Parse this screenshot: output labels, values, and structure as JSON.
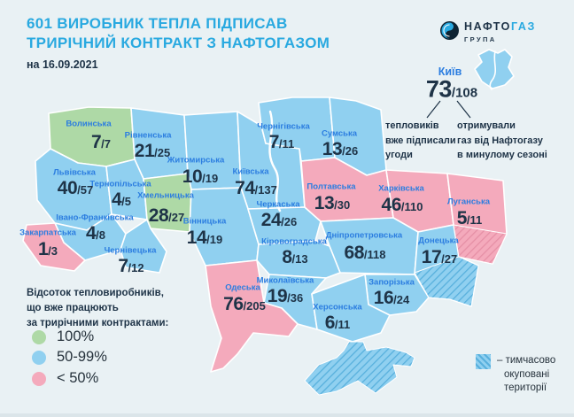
{
  "header": {
    "title_line1": "601 ВИРОБНИК ТЕПЛА ПІДПИСАВ",
    "title_line2": "ТРИРІЧНИЙ КОНТРАКТ З НАФТОГАЗОМ",
    "date": "на 16.09.2021"
  },
  "logo": {
    "brand_dark": "НАФТО",
    "brand_blue": "ГАЗ",
    "subtitle": "ГРУПА"
  },
  "callout": {
    "left_note": [
      "тепловиків",
      "вже підписали",
      "угоди"
    ],
    "right_note": [
      "отримували",
      "газ від Нафтогазу",
      "в минулому сезоні"
    ]
  },
  "regions": [
    {
      "id": "volyn",
      "name": "Волинська",
      "signed": 7,
      "total": 7,
      "category": "green"
    },
    {
      "id": "rivne",
      "name": "Рівненська",
      "signed": 21,
      "total": 25,
      "category": "blue"
    },
    {
      "id": "zhytomyr",
      "name": "Житомирська",
      "signed": 10,
      "total": 19,
      "category": "blue"
    },
    {
      "id": "kyiv-oblast",
      "name": "Київська",
      "signed": 74,
      "total": 137,
      "category": "blue"
    },
    {
      "id": "chernihiv",
      "name": "Чернігівська",
      "signed": 7,
      "total": 11,
      "category": "blue"
    },
    {
      "id": "sumy",
      "name": "Сумська",
      "signed": 13,
      "total": 26,
      "category": "blue"
    },
    {
      "id": "lviv",
      "name": "Львівська",
      "signed": 40,
      "total": 57,
      "category": "blue"
    },
    {
      "id": "ternopil",
      "name": "Тернопільська",
      "signed": 4,
      "total": 5,
      "category": "blue"
    },
    {
      "id": "khmelnytskyi",
      "name": "Хмельницька",
      "signed": 28,
      "total": 27,
      "category": "green"
    },
    {
      "id": "vinnytsia",
      "name": "Вінницька",
      "signed": 14,
      "total": 19,
      "category": "blue"
    },
    {
      "id": "ivano-frankivsk",
      "name": "Івано-Франківська",
      "signed": 4,
      "total": 8,
      "category": "blue"
    },
    {
      "id": "zakarpattia",
      "name": "Закарпатська",
      "signed": 1,
      "total": 3,
      "category": "pink"
    },
    {
      "id": "chernivtsi",
      "name": "Чернівецька",
      "signed": 7,
      "total": 12,
      "category": "blue"
    },
    {
      "id": "cherkasy",
      "name": "Черкаська",
      "signed": 24,
      "total": 26,
      "category": "blue"
    },
    {
      "id": "poltava",
      "name": "Полтавська",
      "signed": 13,
      "total": 30,
      "category": "pink"
    },
    {
      "id": "kharkiv",
      "name": "Харківська",
      "signed": 46,
      "total": 110,
      "category": "pink"
    },
    {
      "id": "luhansk",
      "name": "Луганська",
      "signed": 5,
      "total": 11,
      "category": "pink"
    },
    {
      "id": "dnipro",
      "name": "Дніпропетровська",
      "signed": 68,
      "total": 118,
      "category": "blue"
    },
    {
      "id": "donetsk",
      "name": "Донецька",
      "signed": 17,
      "total": 27,
      "category": "blue"
    },
    {
      "id": "zaporizhzhia",
      "name": "Запорізька",
      "signed": 16,
      "total": 24,
      "category": "blue"
    },
    {
      "id": "kirovohrad",
      "name": "Кіровоградська",
      "signed": 8,
      "total": 13,
      "category": "blue"
    },
    {
      "id": "mykolaiv",
      "name": "Миколаївська",
      "signed": 19,
      "total": 36,
      "category": "blue"
    },
    {
      "id": "odesa",
      "name": "Одеська",
      "signed": 76,
      "total": 205,
      "category": "pink"
    },
    {
      "id": "kherson",
      "name": "Херсонська",
      "signed": 6,
      "total": 11,
      "category": "blue"
    },
    {
      "id": "kyiv-city",
      "name": "Київ",
      "signed": 73,
      "total": 108,
      "category": "blue"
    }
  ],
  "legend": {
    "intro": [
      "Відсоток тепловиробників,",
      "що вже працюють",
      "за трирічними контрактами:"
    ],
    "items": [
      {
        "label": "100%",
        "color": "green"
      },
      {
        "label": "50-99%",
        "color": "blue"
      },
      {
        "label": "< 50%",
        "color": "pink"
      }
    ]
  },
  "occupied_legend": {
    "lines": [
      "– тимчасово",
      "окуповані",
      "території"
    ]
  },
  "colors": {
    "background": "#e9f1f4",
    "green": "#aed9a6",
    "blue": "#90d0f0",
    "pink": "#f4aabc",
    "blue_dark": "#58b0dd",
    "pink_dark": "#e690a6",
    "title_blue": "#29a9e0",
    "label_blue": "#2b7de0",
    "text_dark": "#1e3347"
  }
}
